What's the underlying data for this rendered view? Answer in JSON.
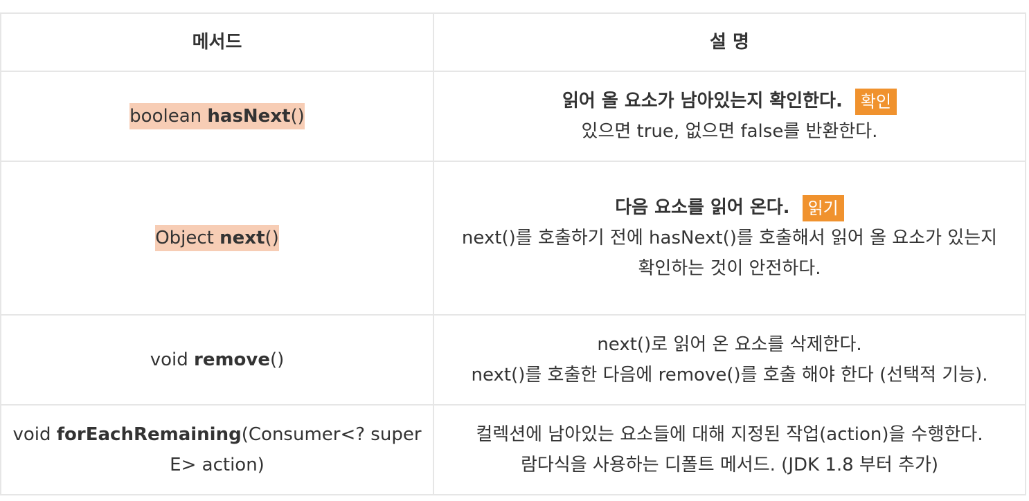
{
  "header": {
    "method": "메서드",
    "description": "설 명"
  },
  "rows": [
    {
      "method_prefix": "boolean ",
      "method_name": "hasNext",
      "method_suffix": "()",
      "desc_main": "읽어 올 요소가 남아있는지 확인한다.",
      "tag": "확인",
      "desc_lines": [
        "있으면 true, 없으면 false를 반환한다."
      ]
    },
    {
      "method_prefix": "Object ",
      "method_name": "next",
      "method_suffix": "()",
      "desc_main": "다음 요소를 읽어 온다.",
      "tag": "읽기",
      "desc_lines": [
        "next()를 호출하기 전에 hasNext()를 호출해서 읽어 올 요소가 있는지",
        "확인하는 것이 안전하다."
      ]
    },
    {
      "method_prefix": "void ",
      "method_name": "remove",
      "method_suffix": "()",
      "desc_lines": [
        "next()로 읽어 온 요소를 삭제한다.",
        "next()를 호출한 다음에 remove()를 호출 해야 한다 (선택적 기능)."
      ]
    },
    {
      "method_prefix": "void ",
      "method_name": "forEachRemaining",
      "method_suffix": "(Consumer<? super E> action)",
      "desc_lines": [
        "컬렉션에 남아있는 요소들에 대해 지정된 작업(action)을 수행한다.",
        "람다식을 사용하는 디폴트 메서드. (JDK 1.8 부터 추가)"
      ]
    }
  ],
  "colors": {
    "method_highlight": "#f7cdb5",
    "tag_bg": "#f0922e",
    "border": "#e6e6e6"
  }
}
